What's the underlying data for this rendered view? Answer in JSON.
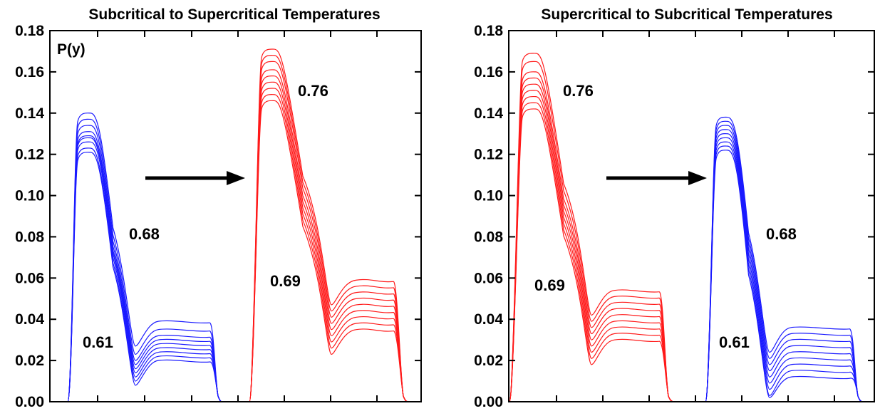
{
  "chart_data": [
    {
      "type": "line",
      "title": "Subcritical to Supercritical Temperatures",
      "ylabel": "P(y)",
      "ylim": [
        0,
        0.18
      ],
      "y_ticks": [
        "0.00",
        "0.02",
        "0.04",
        "0.06",
        "0.08",
        "0.10",
        "0.12",
        "0.14",
        "0.16",
        "0.18"
      ],
      "grid": false,
      "colors": {
        "before": "#0000ff",
        "after": "#ff0000",
        "arrow": "#000000"
      },
      "groups": [
        {
          "color": "blue",
          "range_labels": [
            "0.68",
            "0.61"
          ],
          "peak_values": [
            0.121,
            0.123,
            0.126,
            0.128,
            0.129,
            0.131,
            0.134,
            0.137,
            0.14
          ],
          "plateau_values": [
            0.02,
            0.022,
            0.024,
            0.026,
            0.028,
            0.03,
            0.032,
            0.035,
            0.039
          ]
        },
        {
          "color": "red",
          "range_labels": [
            "0.76",
            "0.69"
          ],
          "peak_values": [
            0.146,
            0.149,
            0.152,
            0.155,
            0.158,
            0.161,
            0.165,
            0.168,
            0.171
          ],
          "plateau_values": [
            0.035,
            0.038,
            0.041,
            0.044,
            0.047,
            0.05,
            0.053,
            0.056,
            0.059
          ]
        }
      ]
    },
    {
      "type": "line",
      "title": "Supercritical to Subcritical Temperatures",
      "ylim": [
        0,
        0.18
      ],
      "y_ticks": [
        "0.00",
        "0.02",
        "0.04",
        "0.06",
        "0.08",
        "0.10",
        "0.12",
        "0.14",
        "0.16",
        "0.18"
      ],
      "grid": false,
      "colors": {
        "before": "#ff0000",
        "after": "#0000ff",
        "arrow": "#000000"
      },
      "groups": [
        {
          "color": "red",
          "range_labels": [
            "0.76",
            "0.69"
          ],
          "peak_values": [
            0.142,
            0.145,
            0.148,
            0.151,
            0.154,
            0.157,
            0.16,
            0.165,
            0.169
          ],
          "plateau_values": [
            0.03,
            0.033,
            0.036,
            0.039,
            0.042,
            0.045,
            0.048,
            0.051,
            0.054
          ]
        },
        {
          "color": "blue",
          "range_labels": [
            "0.68",
            "0.61"
          ],
          "peak_values": [
            0.122,
            0.124,
            0.126,
            0.128,
            0.13,
            0.132,
            0.134,
            0.136,
            0.138
          ],
          "plateau_values": [
            0.012,
            0.015,
            0.018,
            0.021,
            0.024,
            0.027,
            0.03,
            0.033,
            0.036
          ]
        }
      ]
    }
  ]
}
